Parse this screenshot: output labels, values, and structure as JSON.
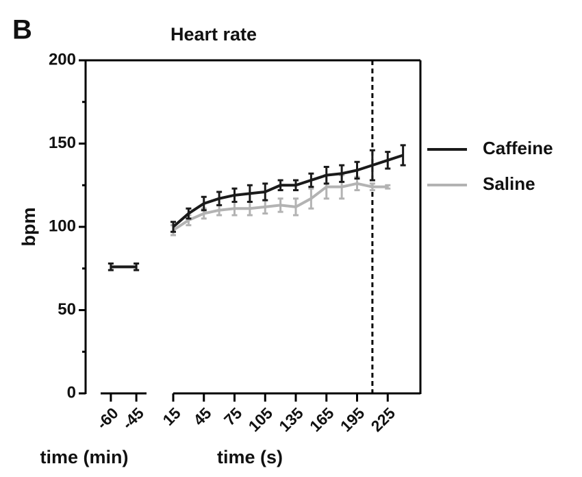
{
  "chart_data": {
    "type": "line",
    "panel_label": "B",
    "title": "Heart rate",
    "y_label": "bpm",
    "x_min_label": "time (min)",
    "x_label": "time (s)",
    "ylim": [
      0,
      200
    ],
    "yticks": [
      0,
      50,
      100,
      150,
      200
    ],
    "yminor": [
      25,
      75,
      125,
      175
    ],
    "x_min": [
      -60,
      -45
    ],
    "x_min_lim": [
      -66,
      -39
    ],
    "x_min_ticks": [
      -60,
      -45
    ],
    "x": [
      15,
      30,
      45,
      60,
      75,
      90,
      105,
      120,
      135,
      150,
      165,
      180,
      195,
      210,
      225,
      240
    ],
    "xlim": [
      15,
      257
    ],
    "xticks": [
      15,
      45,
      75,
      105,
      135,
      165,
      195,
      225
    ],
    "reference_line_x": 210,
    "series": [
      {
        "name": "Caffeine",
        "color": "#1a1a1a",
        "min_values": [
          76,
          76
        ],
        "min_errors": [
          2,
          2
        ],
        "values": [
          100,
          108,
          114,
          117,
          119,
          120,
          121,
          125,
          125,
          128,
          131,
          132,
          134,
          137,
          140,
          143
        ],
        "errors": [
          3,
          3,
          4,
          4,
          4,
          5,
          5,
          3,
          3,
          4,
          5,
          5,
          5,
          9,
          5,
          6
        ]
      },
      {
        "name": "Saline",
        "color": "#b3b3b3",
        "min_values": [
          76,
          76
        ],
        "min_errors": [
          2,
          2
        ],
        "values": [
          98,
          104,
          108,
          110,
          111,
          111,
          112,
          113,
          112,
          117,
          124,
          124,
          126,
          124,
          124,
          null
        ],
        "errors": [
          3,
          3,
          3,
          3,
          4,
          4,
          4,
          4,
          5,
          6,
          7,
          7,
          4,
          2,
          1,
          null
        ]
      }
    ]
  }
}
